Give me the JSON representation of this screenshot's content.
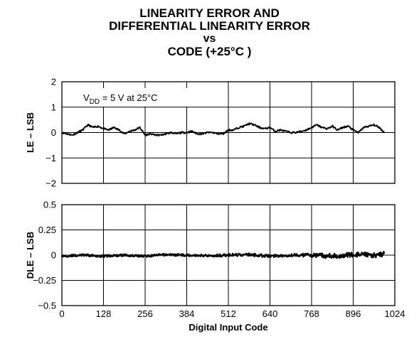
{
  "title": {
    "line1": "LINEARITY ERROR AND",
    "line2": "DIFFERENTIAL LINEARITY ERROR",
    "line3": "vs",
    "line4": "CODE (+25°C )"
  },
  "chart_data": [
    {
      "type": "line",
      "ylabel": "LE – LSB",
      "ylim": [
        -2,
        2
      ],
      "yticks": [
        "2",
        "1",
        "0",
        "−1",
        "−2"
      ],
      "xlim": [
        0,
        1024
      ],
      "grid": true,
      "annotation": {
        "main": "V",
        "sub": "DD",
        "rest": " = 5 V at  25°C"
      },
      "series": [
        {
          "x": [
            0,
            32,
            48,
            64,
            80,
            96,
            112,
            128,
            144,
            160,
            176,
            192,
            208,
            224,
            240,
            256,
            272,
            288,
            304,
            320,
            336,
            352,
            368,
            384,
            400,
            416,
            432,
            448,
            464,
            480,
            496,
            512,
            528,
            544,
            560,
            576,
            592,
            608,
            624,
            640,
            656,
            672,
            688,
            704,
            720,
            736,
            752,
            768,
            784,
            800,
            816,
            832,
            848,
            864,
            880,
            896,
            912,
            928,
            944,
            960,
            976,
            992
          ],
          "values": [
            0,
            -0.1,
            0,
            0.1,
            0.3,
            0.2,
            0.25,
            0.15,
            0.1,
            0.2,
            0.1,
            -0.05,
            0.05,
            0.1,
            0.2,
            -0.1,
            -0.05,
            -0.1,
            -0.1,
            -0.05,
            0,
            -0.05,
            0,
            0,
            0.05,
            -0.05,
            -0.05,
            0,
            0,
            -0.05,
            -0.05,
            0.1,
            0.1,
            0.2,
            0.25,
            0.35,
            0.3,
            0.2,
            0.15,
            0.2,
            0.05,
            0.1,
            0.05,
            0,
            0,
            0.05,
            0.1,
            0.2,
            0.3,
            0.2,
            0.15,
            0.25,
            0.1,
            0.2,
            0.25,
            0.1,
            0,
            0.2,
            0.25,
            0.3,
            0.2,
            0
          ]
        }
      ]
    },
    {
      "type": "line",
      "ylabel": "DLE – LSB",
      "ylim": [
        -0.5,
        0.5
      ],
      "yticks": [
        "0.5",
        "0.25",
        "0",
        "−0.25",
        "−0.5"
      ],
      "xlim": [
        0,
        1024
      ],
      "xticks": [
        "0",
        "128",
        "256",
        "384",
        "512",
        "640",
        "768",
        "896",
        "1024"
      ],
      "xlabel": "Digital Input Code",
      "grid": true,
      "series": [
        {
          "x": [
            0,
            64,
            128,
            192,
            256,
            320,
            384,
            448,
            512,
            576,
            640,
            704,
            768,
            832,
            896,
            960,
            992
          ],
          "values": [
            -0.01,
            0,
            -0.01,
            0,
            -0.01,
            0.005,
            0,
            -0.005,
            0,
            0.005,
            -0.01,
            0,
            0,
            -0.01,
            0.005,
            0,
            0.01
          ],
          "noise_amplitude": [
            0.01,
            0.012,
            0.012,
            0.012,
            0.012,
            0.012,
            0.012,
            0.012,
            0.015,
            0.015,
            0.015,
            0.015,
            0.02,
            0.025,
            0.025,
            0.025,
            0.025
          ]
        }
      ]
    }
  ]
}
